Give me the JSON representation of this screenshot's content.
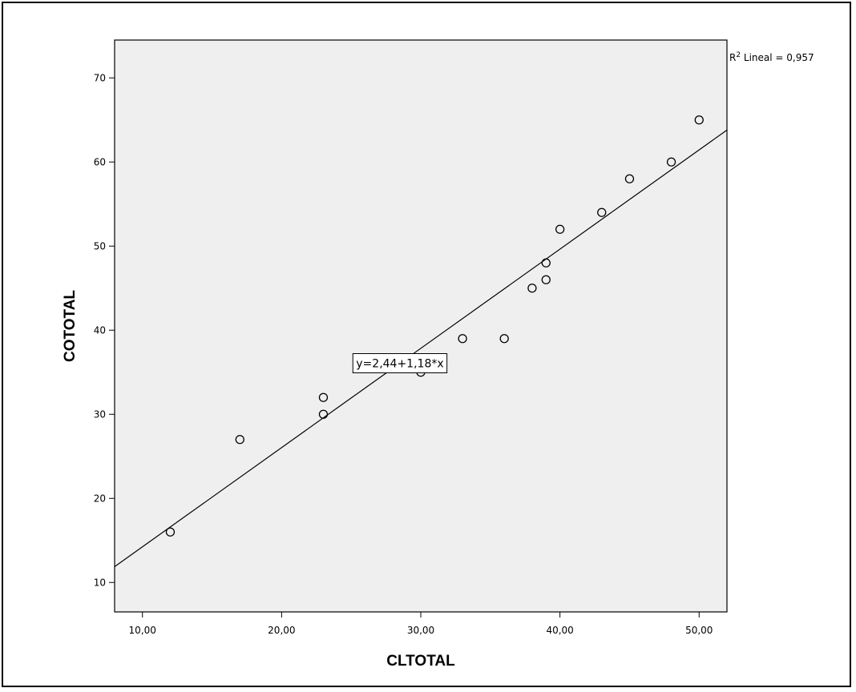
{
  "chart_data": {
    "type": "scatter",
    "xlabel": "CLTOTAL",
    "ylabel": "COTOTAL",
    "xlim": [
      8,
      52
    ],
    "ylim": [
      6.5,
      74.5
    ],
    "x_ticks": [
      10,
      20,
      30,
      40,
      50
    ],
    "x_tick_labels": [
      "10,00",
      "20,00",
      "30,00",
      "40,00",
      "50,00"
    ],
    "y_ticks": [
      10,
      20,
      30,
      40,
      50,
      60,
      70
    ],
    "y_tick_labels": [
      "10",
      "20",
      "30",
      "40",
      "50",
      "60",
      "70"
    ],
    "grid": false,
    "background": "#efefef",
    "points": [
      {
        "x": 12,
        "y": 16
      },
      {
        "x": 17,
        "y": 27
      },
      {
        "x": 23,
        "y": 32
      },
      {
        "x": 23,
        "y": 30
      },
      {
        "x": 30,
        "y": 35
      },
      {
        "x": 33,
        "y": 39
      },
      {
        "x": 36,
        "y": 39
      },
      {
        "x": 38,
        "y": 45
      },
      {
        "x": 39,
        "y": 48
      },
      {
        "x": 39,
        "y": 46
      },
      {
        "x": 40,
        "y": 52
      },
      {
        "x": 43,
        "y": 54
      },
      {
        "x": 45,
        "y": 58
      },
      {
        "x": 48,
        "y": 60
      },
      {
        "x": 50,
        "y": 65
      }
    ],
    "fit_line": {
      "intercept": 2.44,
      "slope": 1.18
    },
    "r2_prefix": "R",
    "r2_sup": "2",
    "r2_text": " Lineal = 0,957",
    "equation_label": "y=2,44+1,18*x"
  }
}
